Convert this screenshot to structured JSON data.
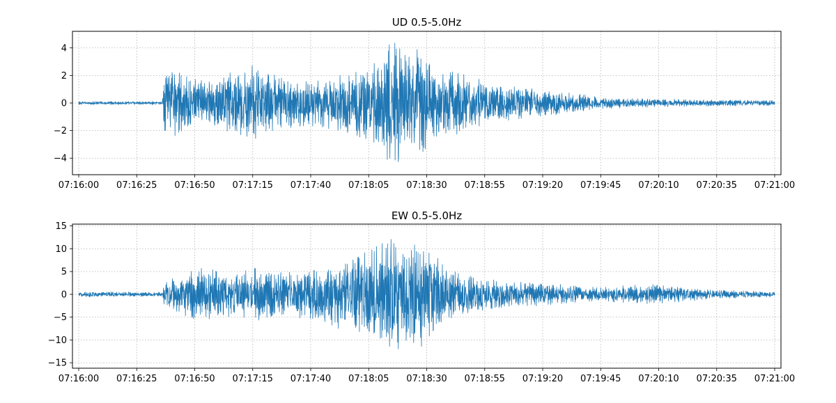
{
  "chart_data": [
    {
      "type": "line",
      "title": "UD 0.5-5.0Hz",
      "xlabel": "",
      "ylabel": "",
      "x_range": [
        "07:16:00",
        "07:21:00"
      ],
      "ylim": [
        -5.2,
        5.2
      ],
      "x_ticks": [
        "07:16:00",
        "07:16:25",
        "07:16:50",
        "07:17:15",
        "07:17:40",
        "07:18:05",
        "07:18:30",
        "07:18:55",
        "07:19:20",
        "07:19:45",
        "07:20:10",
        "07:20:35",
        "07:21:00"
      ],
      "y_ticks": [
        -4,
        -2,
        0,
        2,
        4
      ],
      "y_tick_labels": [
        "−4",
        "−2",
        "0",
        "2",
        "4"
      ],
      "grid": true,
      "series": [
        {
          "color": "#1f77b4",
          "envelope": [
            {
              "t": "07:16:00",
              "amp": 0.12
            },
            {
              "t": "07:16:36",
              "amp": 0.12
            },
            {
              "t": "07:16:37",
              "amp": 2.3
            },
            {
              "t": "07:16:40",
              "amp": 2.6
            },
            {
              "t": "07:16:55",
              "amp": 1.6
            },
            {
              "t": "07:17:05",
              "amp": 2.4
            },
            {
              "t": "07:17:15",
              "amp": 2.9
            },
            {
              "t": "07:17:25",
              "amp": 2.2
            },
            {
              "t": "07:17:40",
              "amp": 1.7
            },
            {
              "t": "07:17:55",
              "amp": 2.3
            },
            {
              "t": "07:18:05",
              "amp": 3.0
            },
            {
              "t": "07:18:10",
              "amp": 3.6
            },
            {
              "t": "07:18:15",
              "amp": 4.6
            },
            {
              "t": "07:18:25",
              "amp": 4.3
            },
            {
              "t": "07:18:35",
              "amp": 2.8
            },
            {
              "t": "07:18:45",
              "amp": 2.2
            },
            {
              "t": "07:19:00",
              "amp": 1.4
            },
            {
              "t": "07:19:20",
              "amp": 1.0
            },
            {
              "t": "07:19:45",
              "amp": 0.45
            },
            {
              "t": "07:20:10",
              "amp": 0.3
            },
            {
              "t": "07:20:35",
              "amp": 0.25
            },
            {
              "t": "07:21:00",
              "amp": 0.2
            }
          ]
        }
      ]
    },
    {
      "type": "line",
      "title": "EW 0.5-5.0Hz",
      "xlabel": "",
      "ylabel": "",
      "x_range": [
        "07:16:00",
        "07:21:00"
      ],
      "ylim": [
        -16.2,
        15.4
      ],
      "x_ticks": [
        "07:16:00",
        "07:16:25",
        "07:16:50",
        "07:17:15",
        "07:17:40",
        "07:18:05",
        "07:18:30",
        "07:18:55",
        "07:19:20",
        "07:19:45",
        "07:20:10",
        "07:20:35",
        "07:21:00"
      ],
      "y_ticks": [
        -15,
        -10,
        -5,
        0,
        5,
        10,
        15
      ],
      "y_tick_labels": [
        "−15",
        "−10",
        "−5",
        "0",
        "5",
        "10",
        "15"
      ],
      "grid": true,
      "series": [
        {
          "color": "#1f77b4",
          "envelope": [
            {
              "t": "07:16:00",
              "amp": 0.6
            },
            {
              "t": "07:16:36",
              "amp": 0.5
            },
            {
              "t": "07:16:37",
              "amp": 3.0
            },
            {
              "t": "07:16:45",
              "amp": 4.5
            },
            {
              "t": "07:16:50",
              "amp": 6.5
            },
            {
              "t": "07:17:05",
              "amp": 5.0
            },
            {
              "t": "07:17:15",
              "amp": 6.0
            },
            {
              "t": "07:17:30",
              "amp": 5.0
            },
            {
              "t": "07:17:45",
              "amp": 6.5
            },
            {
              "t": "07:18:00",
              "amp": 9.0
            },
            {
              "t": "07:18:10",
              "amp": 13.0
            },
            {
              "t": "07:18:20",
              "amp": 14.0
            },
            {
              "t": "07:18:30",
              "amp": 11.0
            },
            {
              "t": "07:18:40",
              "amp": 6.0
            },
            {
              "t": "07:18:55",
              "amp": 3.5
            },
            {
              "t": "07:19:20",
              "amp": 2.5
            },
            {
              "t": "07:19:45",
              "amp": 1.6
            },
            {
              "t": "07:20:05",
              "amp": 2.3
            },
            {
              "t": "07:20:35",
              "amp": 1.0
            },
            {
              "t": "07:21:00",
              "amp": 0.6
            }
          ]
        }
      ]
    }
  ]
}
